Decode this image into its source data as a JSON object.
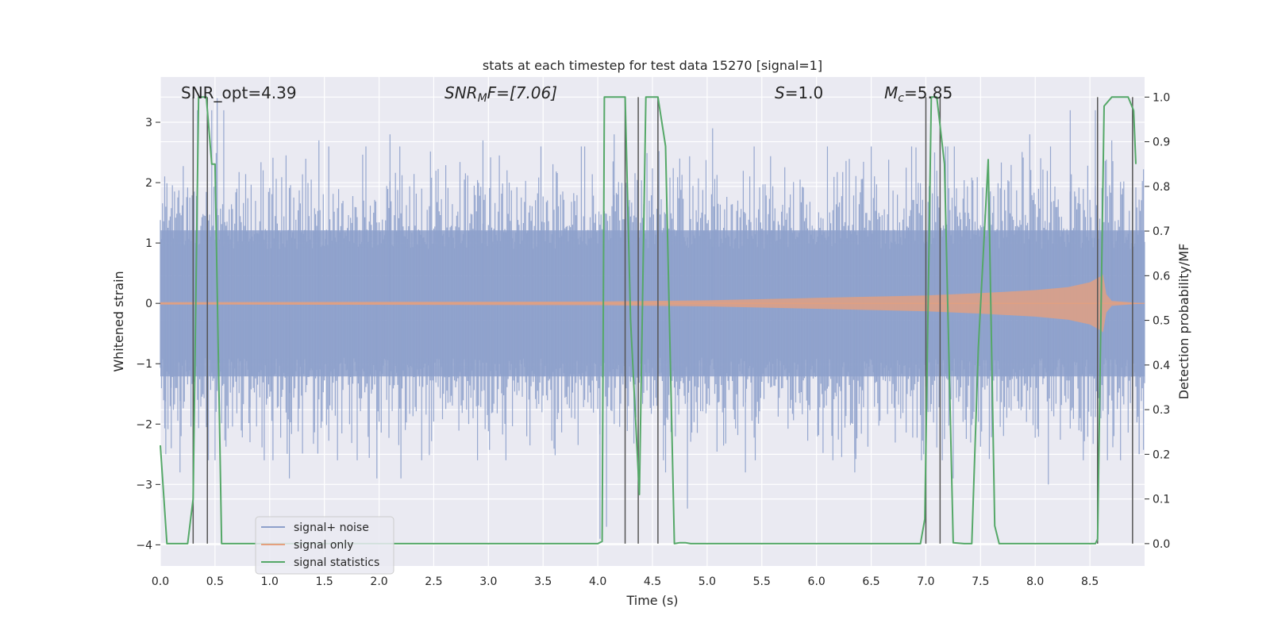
{
  "chart_data": {
    "type": "line",
    "title": "stats at each timestep for test data 15270 [signal=1]",
    "xlabel": "Time (s)",
    "ylabel": "Whitened strain",
    "y2label": "Detection probability/MF",
    "xlim": [
      0.0,
      9.0
    ],
    "ylim": [
      -4.35,
      3.75
    ],
    "y2lim": [
      -0.05,
      1.045
    ],
    "xticks": [
      0.0,
      0.5,
      1.0,
      1.5,
      2.0,
      2.5,
      3.0,
      3.5,
      4.0,
      4.5,
      5.0,
      5.5,
      6.0,
      6.5,
      7.0,
      7.5,
      8.0,
      8.5
    ],
    "xtick_labels": [
      "0.0",
      "0.5",
      "1.0",
      "1.5",
      "2.0",
      "2.5",
      "3.0",
      "3.5",
      "4.0",
      "4.5",
      "5.0",
      "5.5",
      "6.0",
      "6.5",
      "7.0",
      "7.5",
      "8.0",
      "8.5"
    ],
    "yticks": [
      -4,
      -3,
      -2,
      -1,
      0,
      1,
      2,
      3
    ],
    "ytick_labels": [
      "−4",
      "−3",
      "−2",
      "−1",
      "0",
      "1",
      "2",
      "3"
    ],
    "y2ticks": [
      0.0,
      0.1,
      0.2,
      0.3,
      0.4,
      0.5,
      0.6,
      0.7,
      0.8,
      0.9,
      1.0
    ],
    "y2tick_labels": [
      "0.0",
      "0.1",
      "0.2",
      "0.3",
      "0.4",
      "0.5",
      "0.6",
      "0.7",
      "0.8",
      "0.9",
      "1.0"
    ],
    "grid": true,
    "legend_position": "lower-left",
    "annotations": {
      "snr_opt": "SNR_opt=4.39",
      "snr_mf_sym": "SNR",
      "snr_mf_sub": "M",
      "snr_mf_rest": "F=[7.06]",
      "s_sym": "S",
      "s_rest": "=1.0",
      "mc_sym": "M",
      "mc_sub": "c",
      "mc_rest": "=5.85"
    },
    "series": [
      {
        "name": "signal+ noise",
        "axis": "left",
        "color": "#8da0cb",
        "description_of_values": "whitened noise, approx. within ±2.5 with spikes to ±3.2",
        "envelope": {
          "x": [
            0,
            9
          ],
          "upper": [
            2.2,
            2.2
          ],
          "lower": [
            -2.2,
            -2.2
          ]
        },
        "spikes": [
          {
            "x": 0.05,
            "y": -2.5
          },
          {
            "x": 0.1,
            "y": -2.4
          },
          {
            "x": 0.18,
            "y": -2.8
          },
          {
            "x": 0.34,
            "y": 3.2
          },
          {
            "x": 0.47,
            "y": 3.2
          },
          {
            "x": 0.52,
            "y": 3.4
          },
          {
            "x": 0.58,
            "y": 3.2
          },
          {
            "x": 0.82,
            "y": -2.3
          },
          {
            "x": 1.18,
            "y": -2.9
          },
          {
            "x": 1.45,
            "y": 2.7
          },
          {
            "x": 1.98,
            "y": -2.9
          },
          {
            "x": 2.1,
            "y": 2.8
          },
          {
            "x": 2.2,
            "y": -2.9
          },
          {
            "x": 2.95,
            "y": 2.7
          },
          {
            "x": 4.02,
            "y": -3.9
          },
          {
            "x": 4.08,
            "y": -3.7
          },
          {
            "x": 4.15,
            "y": 2.8
          },
          {
            "x": 4.62,
            "y": -2.8
          },
          {
            "x": 4.82,
            "y": -3.4
          },
          {
            "x": 5.05,
            "y": 2.9
          },
          {
            "x": 5.35,
            "y": -2.8
          },
          {
            "x": 6.1,
            "y": 2.6
          },
          {
            "x": 6.35,
            "y": -2.8
          },
          {
            "x": 7.08,
            "y": 2.5
          },
          {
            "x": 7.25,
            "y": -2.9
          },
          {
            "x": 7.95,
            "y": 2.8
          },
          {
            "x": 8.12,
            "y": -3.0
          },
          {
            "x": 8.32,
            "y": 3.2
          },
          {
            "x": 8.55,
            "y": 3.2
          },
          {
            "x": 8.7,
            "y": 2.7
          },
          {
            "x": 8.95,
            "y": -2.5
          }
        ]
      },
      {
        "name": "signal only",
        "axis": "left",
        "color": "#e5a07e",
        "description_of_values": "chirp, amplitude growing to merger at ~8.62 s",
        "amplitude": {
          "x": [
            0.0,
            4.0,
            5.0,
            6.0,
            7.0,
            7.5,
            8.0,
            8.3,
            8.5,
            8.6,
            8.62,
            8.65,
            8.7,
            9.0
          ],
          "y": [
            0.02,
            0.03,
            0.05,
            0.09,
            0.13,
            0.17,
            0.22,
            0.27,
            0.35,
            0.45,
            0.48,
            0.15,
            0.04,
            0.0
          ]
        }
      },
      {
        "name": "signal statistics",
        "axis": "right",
        "color": "#55a868",
        "x": [
          0.0,
          0.06,
          0.25,
          0.3,
          0.35,
          0.38,
          0.42,
          0.47,
          0.5,
          0.56,
          0.7,
          1.0,
          2.0,
          3.0,
          4.0,
          4.04,
          4.06,
          4.12,
          4.25,
          4.3,
          4.38,
          4.44,
          4.55,
          4.62,
          4.7,
          4.75,
          4.8,
          4.85,
          5.0,
          6.0,
          6.95,
          6.99,
          7.05,
          7.1,
          7.17,
          7.25,
          7.35,
          7.42,
          7.48,
          7.57,
          7.63,
          7.67,
          7.7,
          8.0,
          8.55,
          8.57,
          8.63,
          8.7,
          8.85,
          8.9,
          8.92
        ],
        "values": [
          0.22,
          0.0,
          0.0,
          0.1,
          1.0,
          1.0,
          1.0,
          0.85,
          0.85,
          0.0,
          0.0,
          0.0,
          0.0,
          0.0,
          0.0,
          0.005,
          1.0,
          1.0,
          1.0,
          0.5,
          0.11,
          1.0,
          1.0,
          0.89,
          0.0,
          0.002,
          0.002,
          0.0,
          0.0,
          0.0,
          0.0,
          0.055,
          1.0,
          1.0,
          0.85,
          0.002,
          0.0,
          0.0,
          0.44,
          0.86,
          0.04,
          0.0,
          0.0,
          0.0,
          0.0,
          0.01,
          0.98,
          1.0,
          1.0,
          0.97,
          0.85
        ]
      }
    ],
    "detection_markers_x": [
      0.3,
      0.43,
      4.25,
      4.37,
      4.55,
      7.0,
      7.13,
      8.57,
      8.89
    ]
  }
}
